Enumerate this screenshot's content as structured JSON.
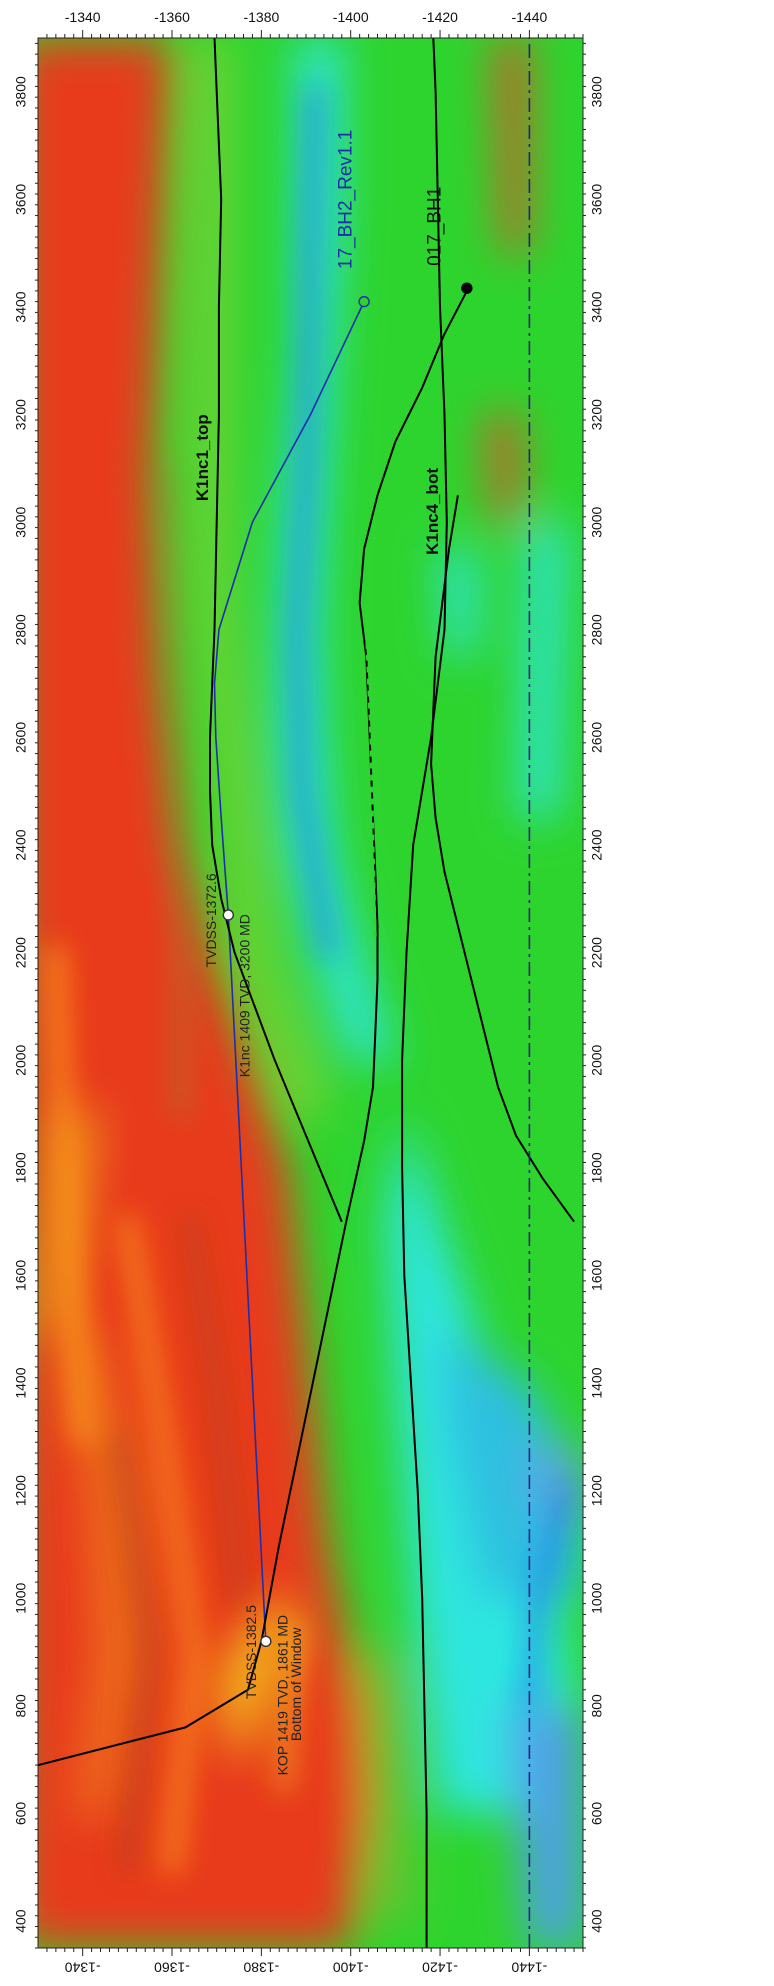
{
  "chart_data": {
    "type": "line",
    "title": "",
    "x_axis": {
      "label": "",
      "range": [
        350,
        3900
      ],
      "ticks": [
        400,
        600,
        800,
        1000,
        1200,
        1400,
        1600,
        1800,
        2000,
        2200,
        2400,
        2600,
        2800,
        3000,
        3200,
        3400,
        3600,
        3800
      ],
      "tick_labels": [
        "400",
        "600",
        "800",
        "1000",
        "1200",
        "1400",
        "1600",
        "1800",
        "2000",
        "2200",
        "2400",
        "2600",
        "2800",
        "3000",
        "3200",
        "3400",
        "3600",
        "3800"
      ]
    },
    "y_axis": {
      "label": "",
      "range": [
        -1330,
        -1452
      ],
      "ticks": [
        -1340,
        -1360,
        -1380,
        -1400,
        -1420,
        -1440
      ],
      "tick_labels": [
        "-1340",
        "-1360",
        "-1380",
        "-1400",
        "-1420",
        "-1440"
      ]
    },
    "grid": false,
    "background": "seismic amplitude section (red / orange / green / cyan / blue)",
    "series": [
      {
        "name": "17_BH2_Rev1.1",
        "color": "#1d2fa8",
        "x": [
          920,
          2270,
          2450,
          2600,
          2700,
          2800,
          3000,
          3200,
          3410
        ],
        "y": [
          -1381,
          -1372.6,
          -1371,
          -1369.8,
          -1369.5,
          -1370.5,
          -1378,
          -1391,
          -1403
        ]
      },
      {
        "name": "017_BH1",
        "color": "#000000",
        "x": [
          690,
          760,
          830,
          920,
          1100,
          1300,
          1500,
          1700,
          1850,
          1950,
          2050,
          2150,
          2250,
          2350,
          2450,
          2550,
          2650,
          2750,
          2850,
          2950,
          3050,
          3150,
          3250,
          3350,
          3430
        ],
        "y": [
          -1330,
          -1363,
          -1377,
          -1380,
          -1384,
          -1389,
          -1394,
          -1399,
          -1403,
          -1405,
          -1405.5,
          -1406,
          -1406,
          -1405.5,
          -1405,
          -1404.5,
          -1404,
          -1403.5,
          -1402,
          -1403,
          -1406,
          -1410,
          -1416,
          -1421,
          -1426
        ]
      },
      {
        "name": "K1nc1_top",
        "color": "#000000",
        "x": [
          1700,
          1800,
          1900,
          2000,
          2100,
          2200,
          2300,
          2400,
          2500,
          2600,
          2700,
          2800,
          3000,
          3200,
          3400,
          3600,
          3800,
          3900
        ],
        "y": [
          -1398,
          -1393,
          -1388,
          -1383,
          -1378.5,
          -1374,
          -1371,
          -1369,
          -1368.5,
          -1368.5,
          -1369,
          -1369.5,
          -1370,
          -1370.5,
          -1370.5,
          -1371,
          -1370,
          -1369.5
        ]
      },
      {
        "name": "K1nc4_bot",
        "color": "#000000",
        "x": [
          350,
          600,
          800,
          1000,
          1200,
          1400,
          1600,
          1800,
          2000,
          2200,
          2400,
          2600,
          2800,
          3000,
          3200,
          3400,
          3600,
          3800,
          3900
        ],
        "y": [
          -1417,
          -1417,
          -1416.5,
          -1416,
          -1415,
          -1413.5,
          -1412,
          -1411.5,
          -1411.5,
          -1412.5,
          -1414,
          -1418,
          -1421,
          -1421.5,
          -1421,
          -1420,
          -1419.5,
          -1419,
          -1418.5
        ]
      },
      {
        "name": "",
        "color": "#000000",
        "x": [
          1700,
          1780,
          1860,
          1950,
          2050,
          2150,
          2250,
          2350,
          2450,
          2550,
          2650,
          2750,
          2850,
          2950,
          3050
        ],
        "y": [
          -1450,
          -1443,
          -1437,
          -1433,
          -1430,
          -1427,
          -1424,
          -1421,
          -1419,
          -1418,
          -1418.5,
          -1419,
          -1420.5,
          -1422,
          -1424
        ]
      },
      {
        "name": "",
        "color": "#22228a",
        "style": "dash-dot",
        "x": [
          350,
          3900
        ],
        "y": [
          -1440,
          -1440
        ]
      }
    ],
    "annotations": [
      {
        "text": "17_BH2_Rev1.1"
      },
      {
        "text": "017_BH1"
      },
      {
        "text": "K1nc1_top"
      },
      {
        "text": "K1nc4_bot"
      },
      {
        "text": "TVDSS-1372.6"
      },
      {
        "text": "K1nc 1409 TVD, 3200 MD"
      },
      {
        "text": "TVDSS-1382.5"
      },
      {
        "text": "KOP 1419 TVD, 1861 MD"
      },
      {
        "text": "Bottom of Window"
      }
    ]
  }
}
